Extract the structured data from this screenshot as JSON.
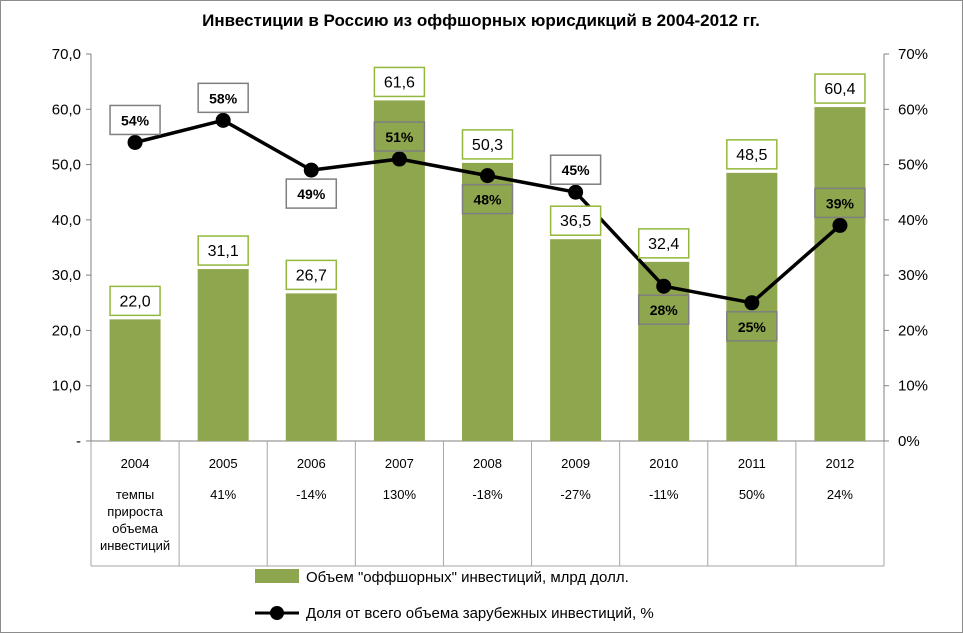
{
  "colors": {
    "bar": "#8ea64d",
    "bar_label_border": "#92b83d",
    "line": "#000000",
    "pct_label_border": "#7f7f7f",
    "grid": "#c8c8c8"
  },
  "chart_data": {
    "type": "bar",
    "title": "Инвестиции в Россию из оффшорных юрисдикций в 2004-2012 гг.",
    "categories": [
      "2004",
      "2005",
      "2006",
      "2007",
      "2008",
      "2009",
      "2010",
      "2011",
      "2012"
    ],
    "bar_series": {
      "name": "Объем \"оффшорных\" инвестиций, млрд долл.",
      "values": [
        22.0,
        31.1,
        26.7,
        61.6,
        50.3,
        36.5,
        32.4,
        48.5,
        60.4
      ],
      "labels": [
        "22,0",
        "31,1",
        "26,7",
        "61,6",
        "50,3",
        "36,5",
        "32,4",
        "48,5",
        "60,4"
      ]
    },
    "line_series": {
      "name": "Доля от всего объема зарубежных инвестиций, %",
      "values": [
        54,
        58,
        49,
        51,
        48,
        45,
        28,
        25,
        39
      ],
      "labels": [
        "54%",
        "58%",
        "49%",
        "51%",
        "48%",
        "45%",
        "28%",
        "25%",
        "39%"
      ]
    },
    "left_axis": {
      "ylim": [
        0,
        70
      ],
      "ticks": [
        0,
        10,
        20,
        30,
        40,
        50,
        60,
        70
      ],
      "tick_labels": [
        "-",
        "10,0",
        "20,0",
        "30,0",
        "40,0",
        "50,0",
        "60,0",
        "70,0"
      ]
    },
    "right_axis": {
      "ylim": [
        0,
        70
      ],
      "ticks": [
        0,
        10,
        20,
        30,
        40,
        50,
        60,
        70
      ],
      "tick_labels": [
        "0%",
        "10%",
        "20%",
        "30%",
        "40%",
        "50%",
        "60%",
        "70%"
      ]
    },
    "table_row": {
      "header_lines": [
        "темпы",
        "прироста",
        "объема",
        "инвестиций"
      ],
      "values": [
        "",
        "41%",
        "-14%",
        "130%",
        "-18%",
        "-27%",
        "-11%",
        "50%",
        "24%"
      ]
    },
    "legend_position": "bottom",
    "grid": false
  }
}
